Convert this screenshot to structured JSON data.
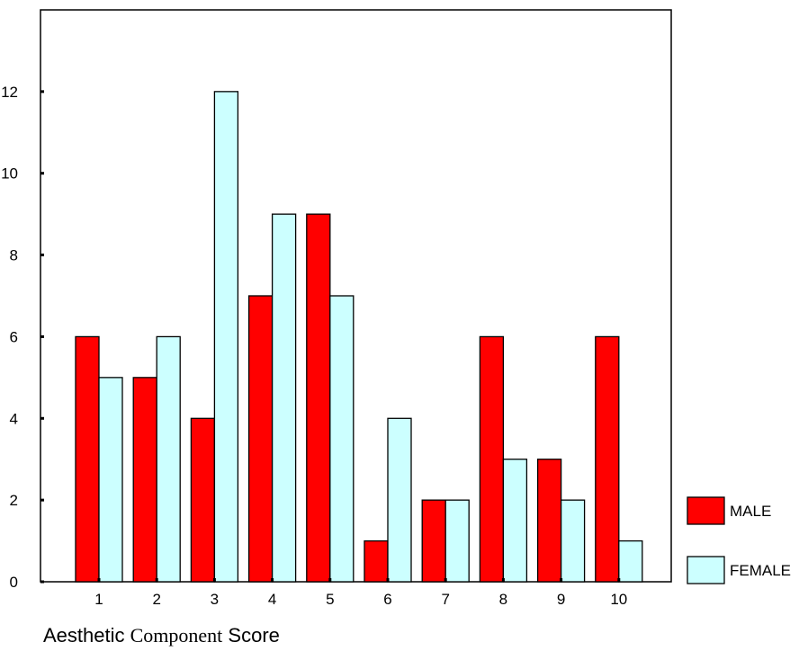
{
  "chart_data": {
    "type": "bar",
    "categories": [
      "1",
      "2",
      "3",
      "4",
      "5",
      "6",
      "7",
      "8",
      "9",
      "10"
    ],
    "series": [
      {
        "name": "MALE",
        "values": [
          6,
          5,
          4,
          7,
          9,
          1,
          2,
          6,
          3,
          6
        ]
      },
      {
        "name": "FEMALE",
        "values": [
          5,
          6,
          12,
          9,
          7,
          4,
          2,
          3,
          2,
          1
        ]
      }
    ],
    "title": "",
    "xlabel_parts": [
      "Aesthetic",
      "Component",
      "Score"
    ],
    "ylabel": "",
    "ylim": [
      0,
      14
    ],
    "yticks": [
      0,
      2,
      4,
      6,
      8,
      10,
      12
    ],
    "grid": false,
    "legend": "right",
    "colors": {
      "MALE": "#ff0000",
      "FEMALE": "#ccffff"
    }
  }
}
